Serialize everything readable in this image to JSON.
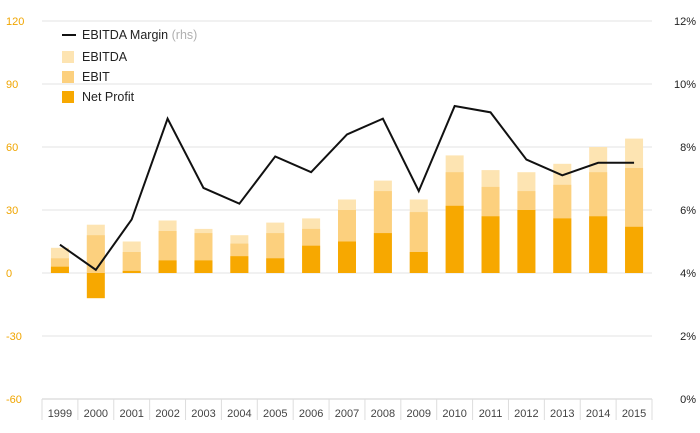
{
  "chart_data": {
    "type": "bar",
    "categories": [
      "1999",
      "2000",
      "2001",
      "2002",
      "2003",
      "2004",
      "2005",
      "2006",
      "2007",
      "2008",
      "2009",
      "2010",
      "2011",
      "2012",
      "2013",
      "2014",
      "2015"
    ],
    "series": [
      {
        "name": "EBITDA",
        "kind": "bar",
        "axis": "left",
        "color": "#fde4b2",
        "values": [
          12,
          23,
          15,
          25,
          21,
          18,
          24,
          26,
          35,
          44,
          35,
          56,
          49,
          48,
          52,
          60,
          64
        ]
      },
      {
        "name": "EBIT",
        "kind": "bar",
        "axis": "left",
        "color": "#fcd07e",
        "values": [
          7,
          18,
          10,
          20,
          19,
          14,
          19,
          21,
          30,
          39,
          29,
          48,
          41,
          39,
          42,
          48,
          50
        ]
      },
      {
        "name": "Net Profit",
        "kind": "bar",
        "axis": "left",
        "color": "#f7a800",
        "values": [
          3,
          -12,
          1,
          6,
          6,
          8,
          7,
          13,
          15,
          19,
          10,
          32,
          27,
          30,
          26,
          27,
          22
        ]
      },
      {
        "name": "EBITDA Margin",
        "note": "(rhs)",
        "kind": "line",
        "axis": "right",
        "color": "#111111",
        "values": [
          4.9,
          4.1,
          5.7,
          8.9,
          6.7,
          6.2,
          7.7,
          7.2,
          8.4,
          8.9,
          6.6,
          9.3,
          9.1,
          7.6,
          7.1,
          7.5,
          7.5
        ]
      }
    ],
    "y_left": {
      "ticks": [
        "120",
        "90",
        "60",
        "30",
        "0",
        "-30",
        "-60"
      ],
      "range": [
        -60,
        120
      ]
    },
    "y_right": {
      "ticks": [
        "12%",
        "10%",
        "8%",
        "6%",
        "4%",
        "2%",
        "0%"
      ],
      "range": [
        0,
        12
      ]
    },
    "legend": {
      "placement": "top-left"
    },
    "grid": true
  }
}
